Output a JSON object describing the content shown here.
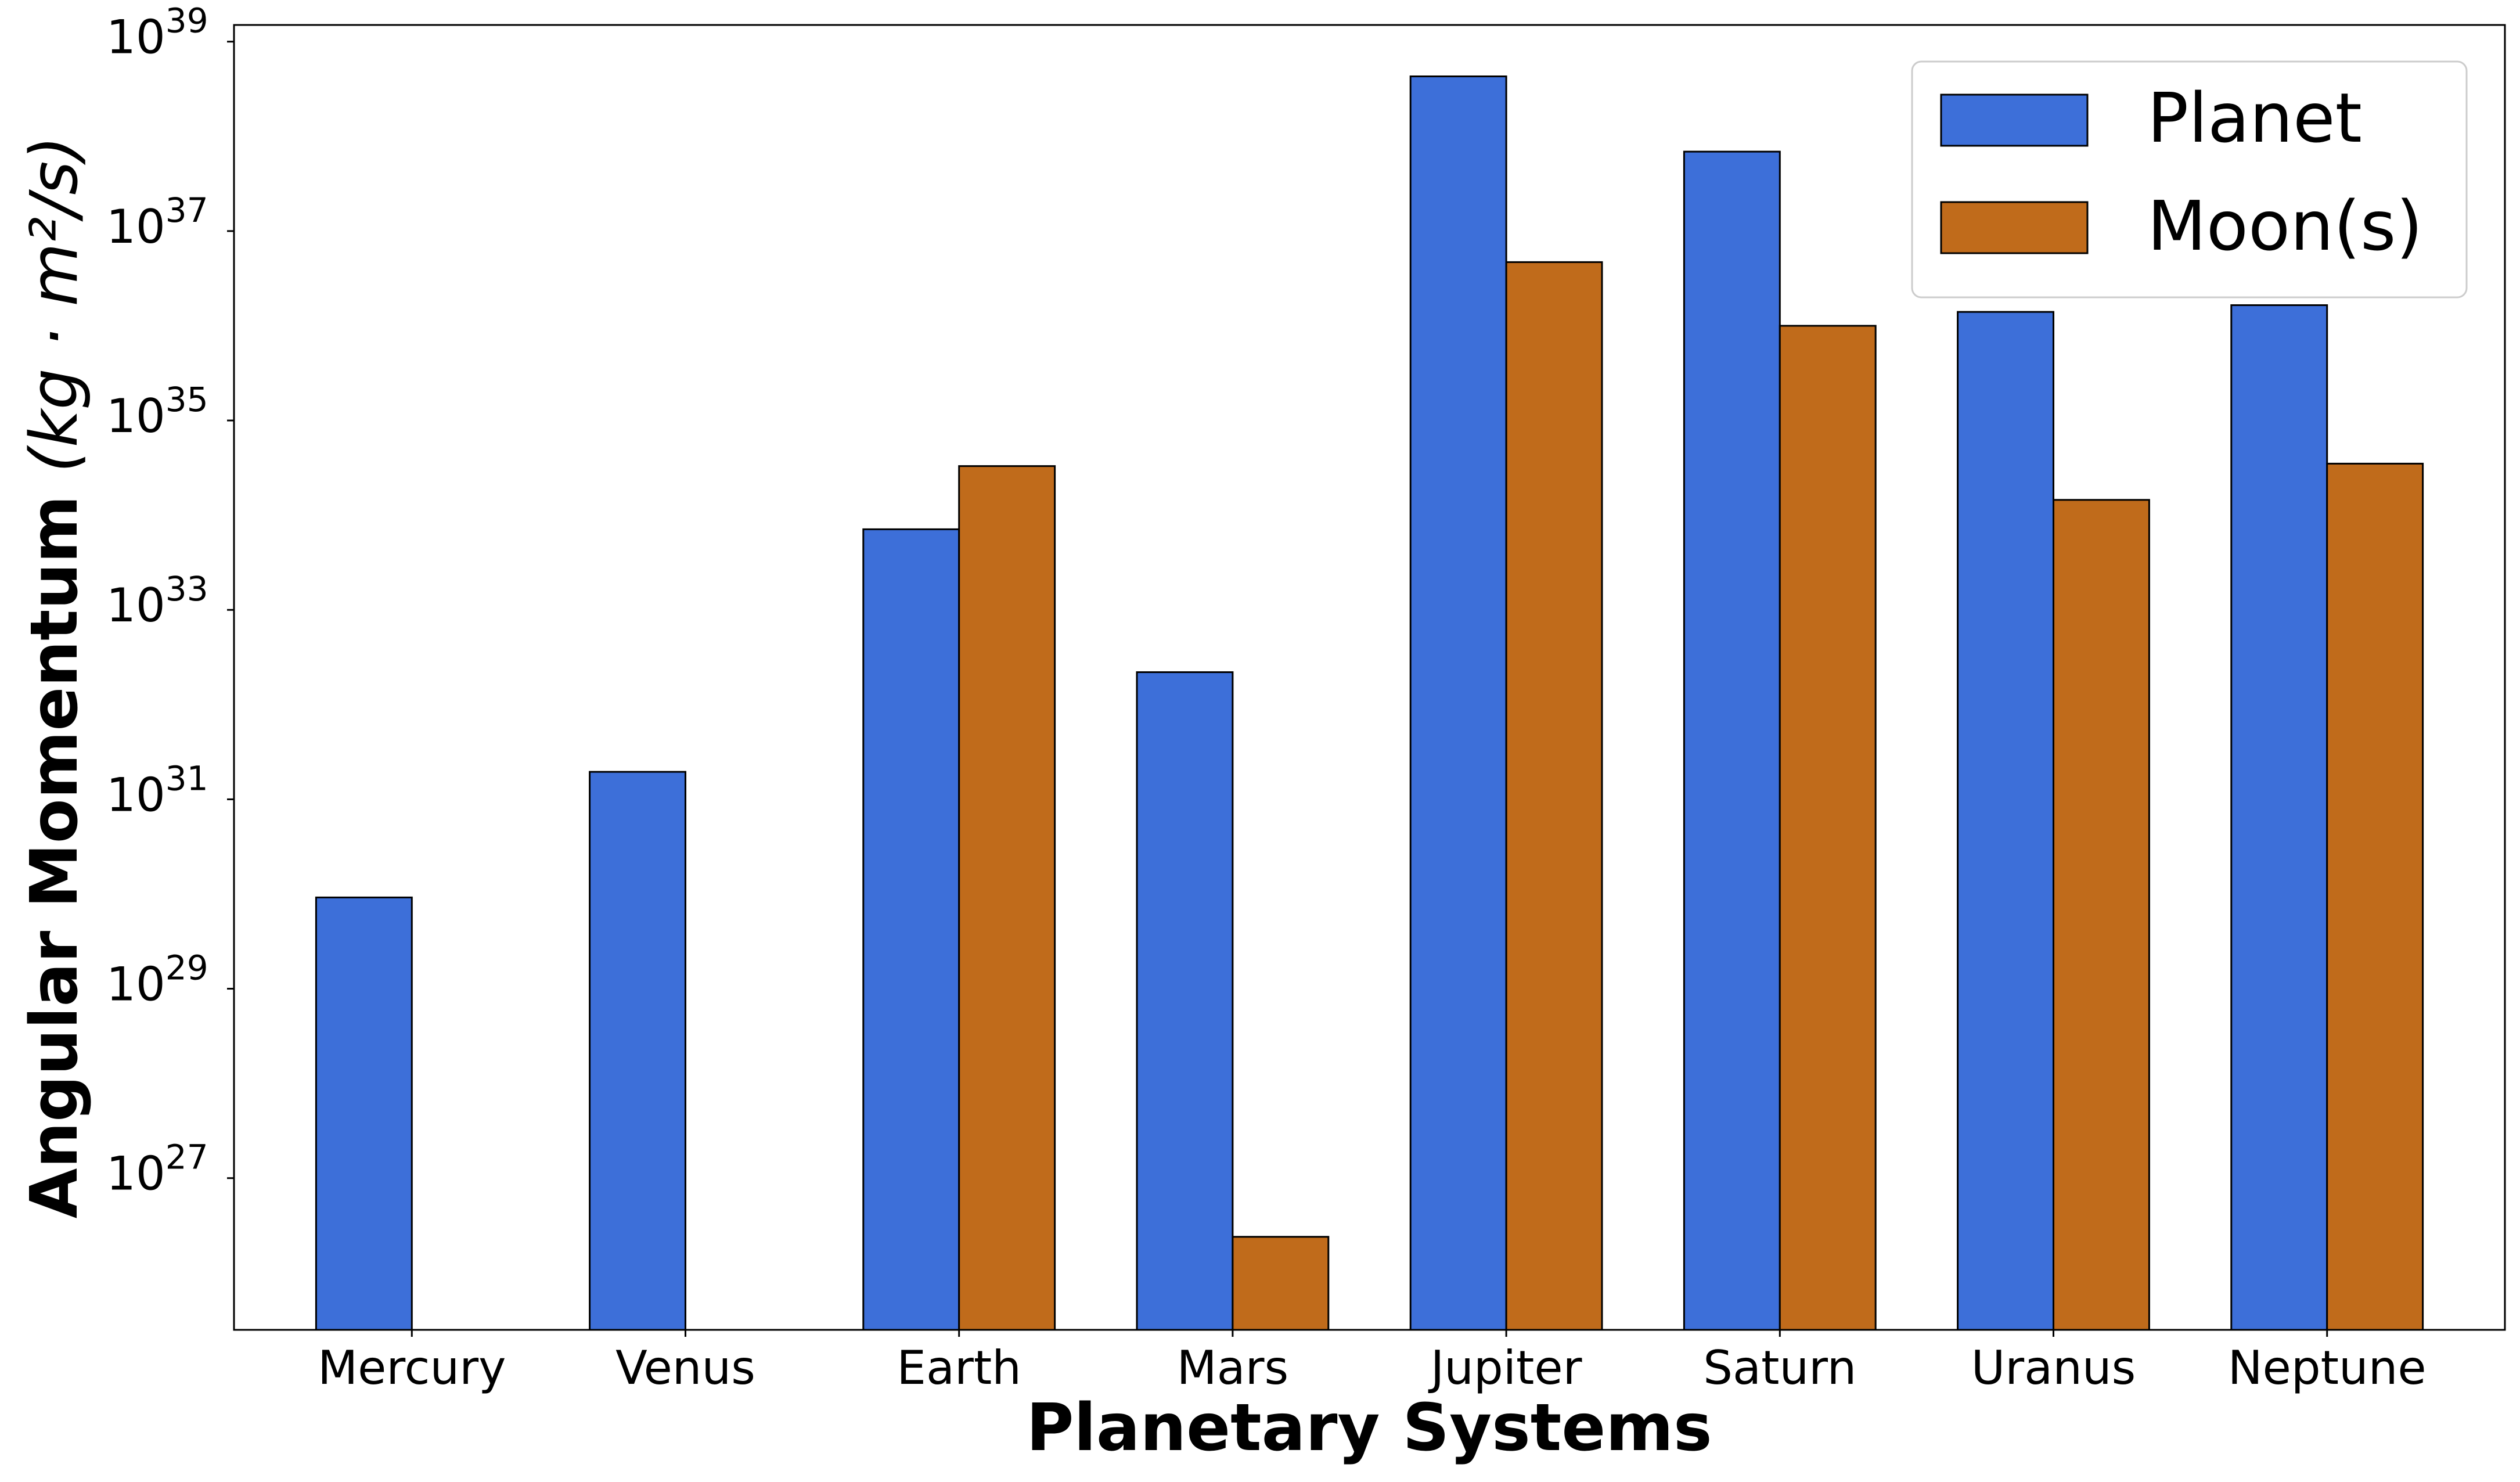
{
  "chart_data": {
    "type": "bar",
    "xlabel": "Planetary Systems",
    "ylabel_text": "Angular Momentum",
    "ylabel_units": "(kg · m²/s)",
    "yscale": "log",
    "ylim": [
      2.5e+25,
      1.5e+39
    ],
    "yticks": [
      {
        "exp": "27",
        "value": 1e+27
      },
      {
        "exp": "29",
        "value": 1e+29
      },
      {
        "exp": "31",
        "value": 1e+31
      },
      {
        "exp": "33",
        "value": 1e+33
      },
      {
        "exp": "35",
        "value": 1e+35
      },
      {
        "exp": "37",
        "value": 1e+37
      },
      {
        "exp": "39",
        "value": 1e+39
      }
    ],
    "ytick_base": "10",
    "categories": [
      "Mercury",
      "Venus",
      "Earth",
      "Mars",
      "Jupiter",
      "Saturn",
      "Uranus",
      "Neptune"
    ],
    "series": [
      {
        "name": "Planet",
        "color": "#3d6fd9",
        "values": [
          9.2e+29,
          1.95e+31,
          7.1e+33,
          2.2e+32,
          4.3e+38,
          6.9e+37,
          1.4e+36,
          1.65e+36
        ]
      },
      {
        "name": "Moon(s)",
        "color": "#c06b1b",
        "values": [
          null,
          null,
          3.3e+34,
          2.4e+26,
          4.7e+36,
          1e+36,
          1.45e+34,
          3.5e+34
        ]
      }
    ],
    "legend_position": "top-right",
    "grid": false
  }
}
